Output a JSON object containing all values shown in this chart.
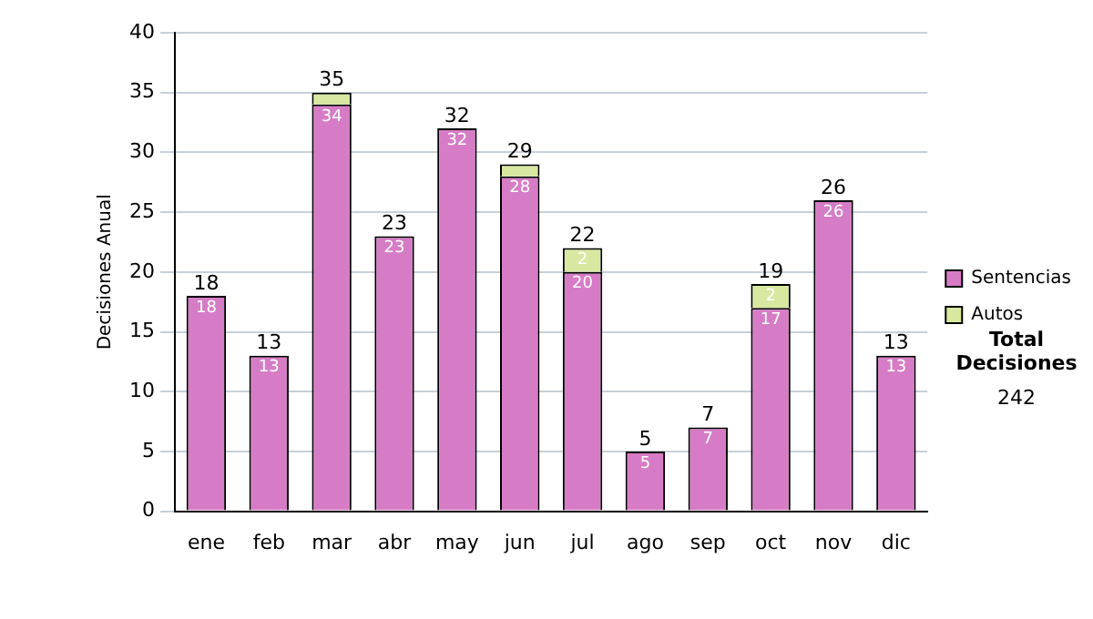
{
  "chart_data": {
    "type": "bar",
    "stacked": true,
    "ylabel": "Decisiones Anual",
    "categories": [
      "ene",
      "feb",
      "mar",
      "abr",
      "may",
      "jun",
      "jul",
      "ago",
      "sep",
      "oct",
      "nov",
      "dic"
    ],
    "series": [
      {
        "name": "Sentencias",
        "color": "#d67cc6",
        "values": [
          18,
          13,
          34,
          23,
          32,
          28,
          20,
          5,
          7,
          17,
          26,
          13
        ],
        "value_labels": [
          "18",
          "13",
          "34",
          "23",
          "32",
          "28",
          "20",
          "5",
          "7",
          "17",
          "26",
          "13"
        ]
      },
      {
        "name": "Autos",
        "color": "#d8e8a0",
        "values": [
          null,
          null,
          1,
          null,
          null,
          1,
          2,
          null,
          null,
          2,
          null,
          null
        ],
        "value_labels": [
          null,
          null,
          null,
          null,
          null,
          null,
          "2",
          null,
          null,
          "2",
          null,
          null
        ]
      }
    ],
    "totals": [
      "18",
      "13",
      "35",
      "23",
      "32",
      "29",
      "22",
      "5",
      "7",
      "19",
      "26",
      "13"
    ],
    "ylim": [
      0,
      40
    ],
    "yticks": [
      0,
      5,
      10,
      15,
      20,
      25,
      30,
      35,
      40
    ],
    "grid": "y",
    "legend": "right",
    "annotations": [
      "Total Decisiones",
      "242"
    ]
  }
}
